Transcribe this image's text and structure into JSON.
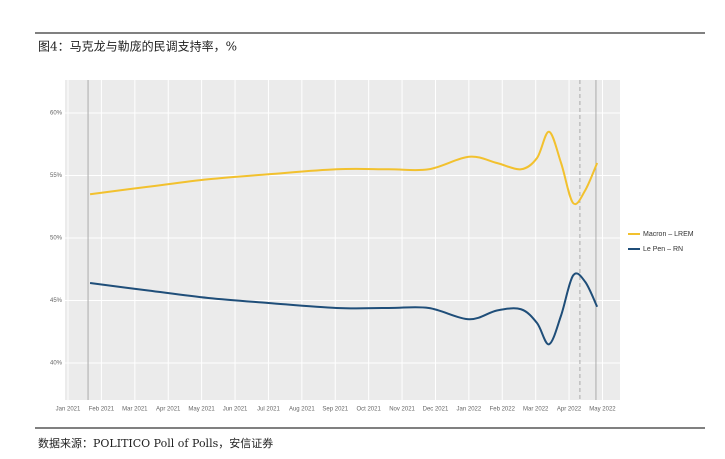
{
  "header": {
    "title": "图4：马克龙与勒庞的民调支持率，%"
  },
  "chart_data": {
    "type": "line",
    "x": [
      2021.055,
      2021.2,
      2021.35,
      2021.5,
      2021.67,
      2021.8,
      2021.9,
      2022.0,
      2022.07,
      2022.13,
      2022.17,
      2022.2,
      2022.23,
      2022.26,
      2022.29,
      2022.32
    ],
    "series": [
      {
        "name": "Macron – LREM",
        "color": "#f2c12e",
        "values": [
          53.5,
          54.1,
          54.7,
          55.1,
          55.5,
          55.5,
          55.5,
          56.5,
          56.0,
          55.5,
          56.4,
          58.5,
          56.0,
          52.8,
          53.8,
          56.0
        ]
      },
      {
        "name": "Le Pen – RN",
        "color": "#1f4e79",
        "values": [
          46.4,
          45.8,
          45.2,
          44.8,
          44.4,
          44.4,
          44.4,
          43.5,
          44.2,
          44.3,
          43.2,
          41.5,
          43.8,
          47.0,
          46.5,
          44.5
        ]
      }
    ],
    "xlim": [
      2020.9925,
      2022.377
    ],
    "xticks": [
      {
        "value": 2021.0,
        "label": "Jan 2021"
      },
      {
        "value": 2021.0833,
        "label": "Feb 2021"
      },
      {
        "value": 2021.1667,
        "label": "Mar 2021"
      },
      {
        "value": 2021.25,
        "label": "Apr 2021"
      },
      {
        "value": 2021.3333,
        "label": "May 2021"
      },
      {
        "value": 2021.4167,
        "label": "Jun 2021"
      },
      {
        "value": 2021.5,
        "label": "Jul 2021"
      },
      {
        "value": 2021.5833,
        "label": "Aug 2021"
      },
      {
        "value": 2021.6667,
        "label": "Sep 2021"
      },
      {
        "value": 2021.75,
        "label": "Oct 2021"
      },
      {
        "value": 2021.8333,
        "label": "Nov 2021"
      },
      {
        "value": 2021.9167,
        "label": "Dec 2021"
      },
      {
        "value": 2022.0,
        "label": "Jan 2022"
      },
      {
        "value": 2022.0833,
        "label": "Feb 2022"
      },
      {
        "value": 2022.1667,
        "label": "Mar 2022"
      },
      {
        "value": 2022.25,
        "label": "Apr 2022"
      },
      {
        "value": 2022.3333,
        "label": "May 2022"
      }
    ],
    "ylim": [
      37.04,
      62.64
    ],
    "yticks": [
      {
        "value": 40,
        "label": "40%"
      },
      {
        "value": 45,
        "label": "45%"
      },
      {
        "value": 50,
        "label": "50%"
      },
      {
        "value": 55,
        "label": "55%"
      },
      {
        "value": 60,
        "label": "60%"
      }
    ],
    "vlines": [
      {
        "x": 2021.05,
        "style": "solid"
      },
      {
        "x": 2022.277,
        "style": "dashed"
      },
      {
        "x": 2022.317,
        "style": "solid"
      }
    ],
    "grid": true,
    "legend": "right"
  },
  "footer": {
    "source": "数据来源：POLITICO Poll of Polls，安信证券"
  }
}
